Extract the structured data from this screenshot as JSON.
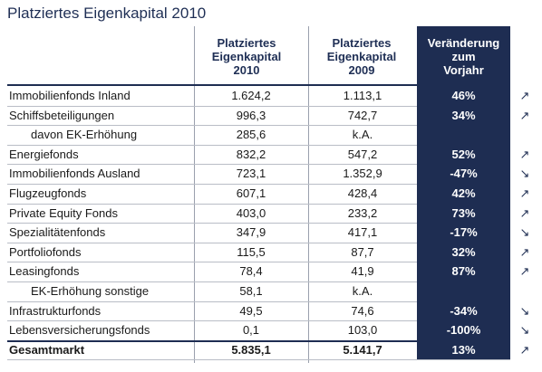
{
  "title": "Platziertes Eigenkapital 2010",
  "headers": {
    "col2010": "Platziertes\nEigenkapital\n2010",
    "col2009": "Platziertes\nEigenkapital\n2009",
    "change": "Veränderung\nzum\nVorjahr"
  },
  "rows": [
    {
      "label": "Immobilienfonds Inland",
      "v2010": "1.624,2",
      "v2009": "1.113,1",
      "change": "46%",
      "trend": "up-icon",
      "arrow": "↗"
    },
    {
      "label": "Schiffsbeteiligungen",
      "v2010": "996,3",
      "v2009": "742,7",
      "change": "34%",
      "trend": "up-icon",
      "arrow": "↗"
    },
    {
      "label": "davon EK-Erhöhung",
      "v2010": "285,6",
      "v2009": "k.A.",
      "change": "",
      "trend": "",
      "arrow": "",
      "indent": true
    },
    {
      "label": "Energiefonds",
      "v2010": "832,2",
      "v2009": "547,2",
      "change": "52%",
      "trend": "up-icon",
      "arrow": "↗"
    },
    {
      "label": "Immobilienfonds Ausland",
      "v2010": "723,1",
      "v2009": "1.352,9",
      "change": "-47%",
      "trend": "down-icon",
      "arrow": "↘"
    },
    {
      "label": "Flugzeugfonds",
      "v2010": "607,1",
      "v2009": "428,4",
      "change": "42%",
      "trend": "up-icon",
      "arrow": "↗"
    },
    {
      "label": "Private Equity Fonds",
      "v2010": "403,0",
      "v2009": "233,2",
      "change": "73%",
      "trend": "up-icon",
      "arrow": "↗"
    },
    {
      "label": "Spezialitätenfonds",
      "v2010": "347,9",
      "v2009": "417,1",
      "change": "-17%",
      "trend": "down-icon",
      "arrow": "↘"
    },
    {
      "label": "Portfoliofonds",
      "v2010": "115,5",
      "v2009": "87,7",
      "change": "32%",
      "trend": "up-icon",
      "arrow": "↗"
    },
    {
      "label": "Leasingfonds",
      "v2010": "78,4",
      "v2009": "41,9",
      "change": "87%",
      "trend": "up-icon",
      "arrow": "↗"
    },
    {
      "label": "EK-Erhöhung sonstige",
      "v2010": "58,1",
      "v2009": "k.A.",
      "change": "",
      "trend": "",
      "arrow": "",
      "indent": true
    },
    {
      "label": "Infrastrukturfonds",
      "v2010": "49,5",
      "v2009": "74,6",
      "change": "-34%",
      "trend": "down-icon",
      "arrow": "↘"
    },
    {
      "label": "Lebensversicherungsfonds",
      "v2010": "0,1",
      "v2009": "103,0",
      "change": "-100%",
      "trend": "down-icon",
      "arrow": "↘"
    },
    {
      "label": "Gesamtmarkt",
      "v2010": "5.835,1",
      "v2009": "5.141,7",
      "change": "13%",
      "trend": "up-icon",
      "arrow": "↗",
      "total": true
    }
  ],
  "colors": {
    "accent": "#1e2d52",
    "title": "#1f2f55"
  }
}
